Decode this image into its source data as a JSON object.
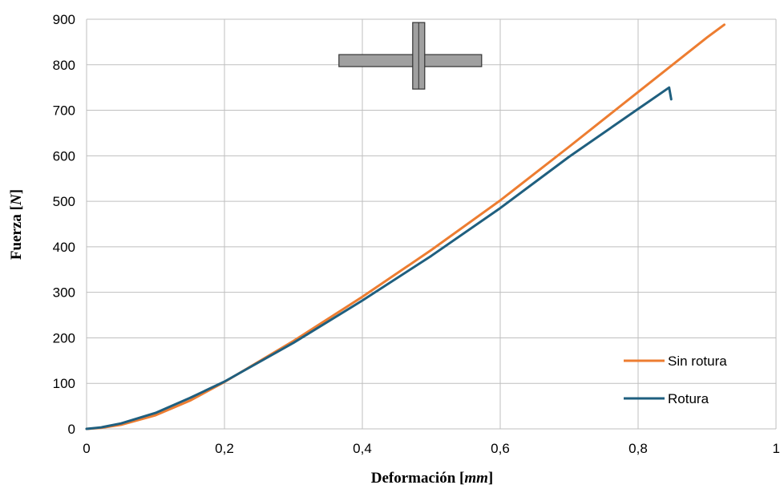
{
  "chart_data": {
    "type": "line",
    "title": "",
    "xlabel": {
      "main": "Deformación [",
      "unit": "mm",
      "close": "]"
    },
    "ylabel": {
      "main": "Fuerza [",
      "unit": "N",
      "close": "]"
    },
    "xlim": [
      0,
      1
    ],
    "ylim": [
      0,
      900
    ],
    "x_ticks": [
      {
        "value": 0,
        "label": "0"
      },
      {
        "value": 0.2,
        "label": "0,2"
      },
      {
        "value": 0.4,
        "label": "0,4"
      },
      {
        "value": 0.6,
        "label": "0,6"
      },
      {
        "value": 0.8,
        "label": "0,8"
      },
      {
        "value": 1,
        "label": "1"
      }
    ],
    "y_ticks": [
      {
        "value": 0,
        "label": "0"
      },
      {
        "value": 100,
        "label": "100"
      },
      {
        "value": 200,
        "label": "200"
      },
      {
        "value": 300,
        "label": "300"
      },
      {
        "value": 400,
        "label": "400"
      },
      {
        "value": 500,
        "label": "500"
      },
      {
        "value": 600,
        "label": "600"
      },
      {
        "value": 700,
        "label": "700"
      },
      {
        "value": 800,
        "label": "800"
      },
      {
        "value": 900,
        "label": "900"
      }
    ],
    "grid": true,
    "legend_position": "bottom-right",
    "series": [
      {
        "name": "Sin rotura",
        "color": "#ED7D31",
        "points": [
          [
            0,
            0
          ],
          [
            0.02,
            2
          ],
          [
            0.05,
            9
          ],
          [
            0.1,
            30
          ],
          [
            0.15,
            62
          ],
          [
            0.2,
            103
          ],
          [
            0.3,
            193
          ],
          [
            0.4,
            290
          ],
          [
            0.5,
            393
          ],
          [
            0.6,
            502
          ],
          [
            0.7,
            620
          ],
          [
            0.8,
            740
          ],
          [
            0.9,
            860
          ],
          [
            0.925,
            888
          ]
        ]
      },
      {
        "name": "Rotura",
        "color": "#1F5F7F",
        "points": [
          [
            0,
            0
          ],
          [
            0.02,
            3
          ],
          [
            0.05,
            12
          ],
          [
            0.1,
            35
          ],
          [
            0.15,
            68
          ],
          [
            0.2,
            104
          ],
          [
            0.3,
            189
          ],
          [
            0.4,
            282
          ],
          [
            0.5,
            380
          ],
          [
            0.6,
            485
          ],
          [
            0.7,
            598
          ],
          [
            0.8,
            703
          ],
          [
            0.845,
            750
          ],
          [
            0.848,
            724
          ]
        ]
      }
    ],
    "specimen_icon": {
      "name": "cross-specimen-icon",
      "fill": "#A0A0A0",
      "stroke": "#333333"
    }
  }
}
